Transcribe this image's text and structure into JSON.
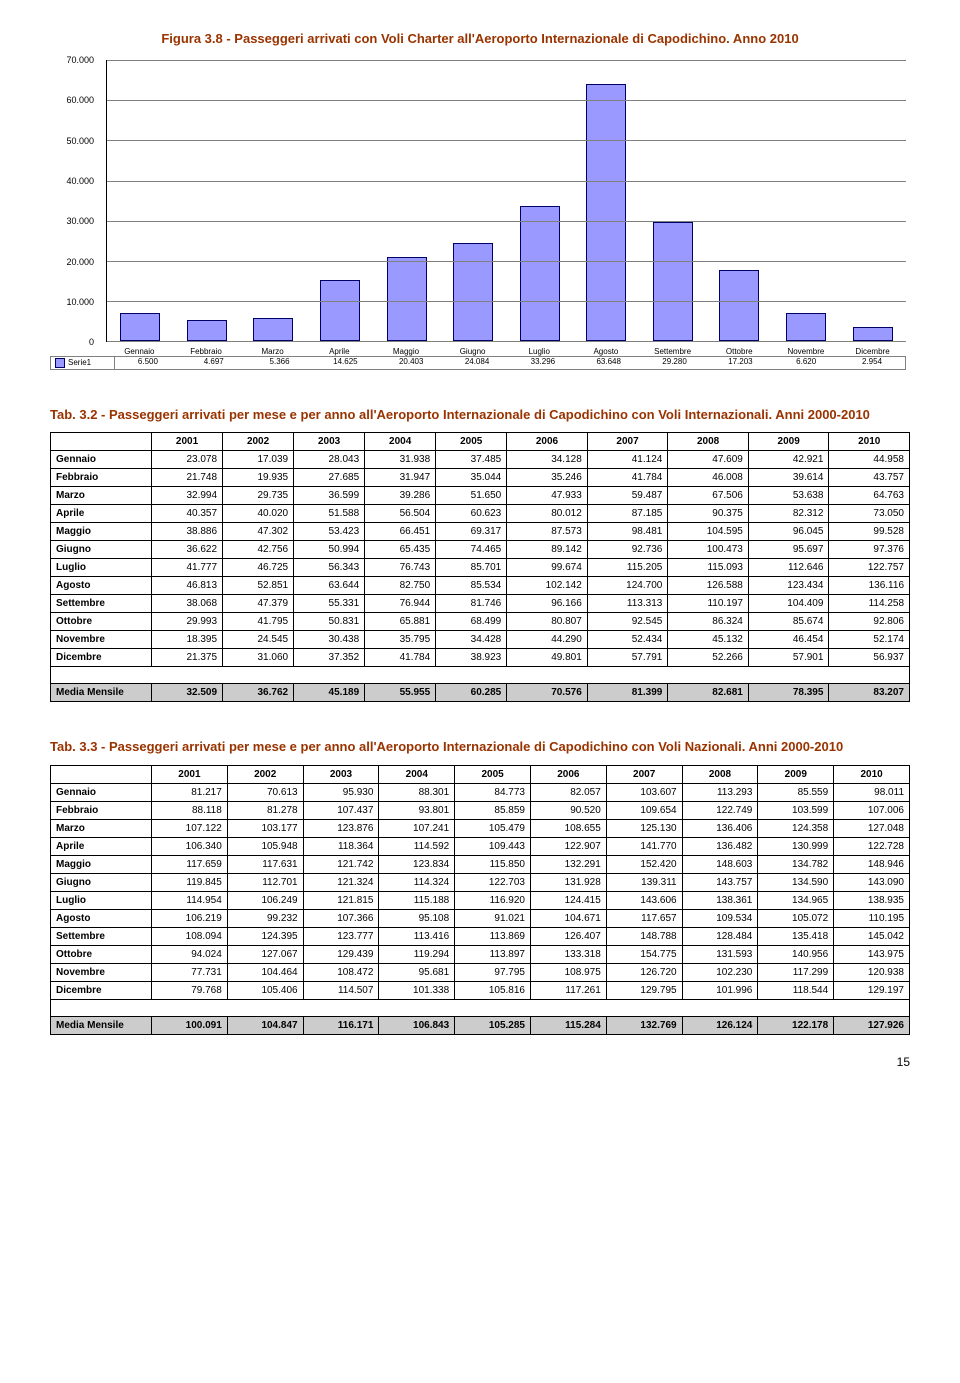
{
  "chart": {
    "title": "Figura 3.8 - Passeggeri arrivati con Voli Charter all'Aeroporto Internazionale di Capodichino. Anno 2010",
    "categories": [
      "Gennaio",
      "Febbraio",
      "Marzo",
      "Aprile",
      "Maggio",
      "Giugno",
      "Luglio",
      "Agosto",
      "Settembre",
      "Ottobre",
      "Novembre",
      "Dicembre"
    ],
    "values": [
      6500,
      4697,
      5366,
      14625,
      20403,
      24084,
      33296,
      63648,
      29280,
      17203,
      6620,
      2954
    ],
    "labels": [
      "6.500",
      "4.697",
      "5.366",
      "14.625",
      "20.403",
      "24.084",
      "33.296",
      "63.648",
      "29.280",
      "17.203",
      "6.620",
      "2.954"
    ],
    "series_name": "Serie1",
    "y_max": 70000,
    "y_ticks": [
      "0",
      "10.000",
      "20.000",
      "30.000",
      "40.000",
      "50.000",
      "60.000",
      "70.000"
    ],
    "bar_color": "#9999ff",
    "bar_border": "#000066",
    "grid_color": "#808080"
  },
  "table1": {
    "title": "Tab. 3.2 - Passeggeri arrivati per mese e per anno all'Aeroporto Internazionale di Capodichino con Voli Internazionali. Anni 2000-2010",
    "years": [
      "2001",
      "2002",
      "2003",
      "2004",
      "2005",
      "2006",
      "2007",
      "2008",
      "2009",
      "2010"
    ],
    "rows": [
      {
        "m": "Gennaio",
        "v": [
          "23.078",
          "17.039",
          "28.043",
          "31.938",
          "37.485",
          "34.128",
          "41.124",
          "47.609",
          "42.921",
          "44.958"
        ]
      },
      {
        "m": "Febbraio",
        "v": [
          "21.748",
          "19.935",
          "27.685",
          "31.947",
          "35.044",
          "35.246",
          "41.784",
          "46.008",
          "39.614",
          "43.757"
        ]
      },
      {
        "m": "Marzo",
        "v": [
          "32.994",
          "29.735",
          "36.599",
          "39.286",
          "51.650",
          "47.933",
          "59.487",
          "67.506",
          "53.638",
          "64.763"
        ]
      },
      {
        "m": "Aprile",
        "v": [
          "40.357",
          "40.020",
          "51.588",
          "56.504",
          "60.623",
          "80.012",
          "87.185",
          "90.375",
          "82.312",
          "73.050"
        ]
      },
      {
        "m": "Maggio",
        "v": [
          "38.886",
          "47.302",
          "53.423",
          "66.451",
          "69.317",
          "87.573",
          "98.481",
          "104.595",
          "96.045",
          "99.528"
        ]
      },
      {
        "m": "Giugno",
        "v": [
          "36.622",
          "42.756",
          "50.994",
          "65.435",
          "74.465",
          "89.142",
          "92.736",
          "100.473",
          "95.697",
          "97.376"
        ]
      },
      {
        "m": "Luglio",
        "v": [
          "41.777",
          "46.725",
          "56.343",
          "76.743",
          "85.701",
          "99.674",
          "115.205",
          "115.093",
          "112.646",
          "122.757"
        ]
      },
      {
        "m": "Agosto",
        "v": [
          "46.813",
          "52.851",
          "63.644",
          "82.750",
          "85.534",
          "102.142",
          "124.700",
          "126.588",
          "123.434",
          "136.116"
        ]
      },
      {
        "m": "Settembre",
        "v": [
          "38.068",
          "47.379",
          "55.331",
          "76.944",
          "81.746",
          "96.166",
          "113.313",
          "110.197",
          "104.409",
          "114.258"
        ]
      },
      {
        "m": "Ottobre",
        "v": [
          "29.993",
          "41.795",
          "50.831",
          "65.881",
          "68.499",
          "80.807",
          "92.545",
          "86.324",
          "85.674",
          "92.806"
        ]
      },
      {
        "m": "Novembre",
        "v": [
          "18.395",
          "24.545",
          "30.438",
          "35.795",
          "34.428",
          "44.290",
          "52.434",
          "45.132",
          "46.454",
          "52.174"
        ]
      },
      {
        "m": "Dicembre",
        "v": [
          "21.375",
          "31.060",
          "37.352",
          "41.784",
          "38.923",
          "49.801",
          "57.791",
          "52.266",
          "57.901",
          "56.937"
        ]
      }
    ],
    "media_label": "Media Mensile",
    "media": [
      "32.509",
      "36.762",
      "45.189",
      "55.955",
      "60.285",
      "70.576",
      "81.399",
      "82.681",
      "78.395",
      "83.207"
    ]
  },
  "table2": {
    "title": "Tab. 3.3 - Passeggeri arrivati per mese e per anno all'Aeroporto Internazionale di Capodichino con Voli Nazionali. Anni 2000-2010",
    "years": [
      "2001",
      "2002",
      "2003",
      "2004",
      "2005",
      "2006",
      "2007",
      "2008",
      "2009",
      "2010"
    ],
    "rows": [
      {
        "m": "Gennaio",
        "v": [
          "81.217",
          "70.613",
          "95.930",
          "88.301",
          "84.773",
          "82.057",
          "103.607",
          "113.293",
          "85.559",
          "98.011"
        ]
      },
      {
        "m": "Febbraio",
        "v": [
          "88.118",
          "81.278",
          "107.437",
          "93.801",
          "85.859",
          "90.520",
          "109.654",
          "122.749",
          "103.599",
          "107.006"
        ]
      },
      {
        "m": "Marzo",
        "v": [
          "107.122",
          "103.177",
          "123.876",
          "107.241",
          "105.479",
          "108.655",
          "125.130",
          "136.406",
          "124.358",
          "127.048"
        ]
      },
      {
        "m": "Aprile",
        "v": [
          "106.340",
          "105.948",
          "118.364",
          "114.592",
          "109.443",
          "122.907",
          "141.770",
          "136.482",
          "130.999",
          "122.728"
        ]
      },
      {
        "m": "Maggio",
        "v": [
          "117.659",
          "117.631",
          "121.742",
          "123.834",
          "115.850",
          "132.291",
          "152.420",
          "148.603",
          "134.782",
          "148.946"
        ]
      },
      {
        "m": "Giugno",
        "v": [
          "119.845",
          "112.701",
          "121.324",
          "114.324",
          "122.703",
          "131.928",
          "139.311",
          "143.757",
          "134.590",
          "143.090"
        ]
      },
      {
        "m": "Luglio",
        "v": [
          "114.954",
          "106.249",
          "121.815",
          "115.188",
          "116.920",
          "124.415",
          "143.606",
          "138.361",
          "134.965",
          "138.935"
        ]
      },
      {
        "m": "Agosto",
        "v": [
          "106.219",
          "99.232",
          "107.366",
          "95.108",
          "91.021",
          "104.671",
          "117.657",
          "109.534",
          "105.072",
          "110.195"
        ]
      },
      {
        "m": "Settembre",
        "v": [
          "108.094",
          "124.395",
          "123.777",
          "113.416",
          "113.869",
          "126.407",
          "148.788",
          "128.484",
          "135.418",
          "145.042"
        ]
      },
      {
        "m": "Ottobre",
        "v": [
          "94.024",
          "127.067",
          "129.439",
          "119.294",
          "113.897",
          "133.318",
          "154.775",
          "131.593",
          "140.956",
          "143.975"
        ]
      },
      {
        "m": "Novembre",
        "v": [
          "77.731",
          "104.464",
          "108.472",
          "95.681",
          "97.795",
          "108.975",
          "126.720",
          "102.230",
          "117.299",
          "120.938"
        ]
      },
      {
        "m": "Dicembre",
        "v": [
          "79.768",
          "105.406",
          "114.507",
          "101.338",
          "105.816",
          "117.261",
          "129.795",
          "101.996",
          "118.544",
          "129.197"
        ]
      }
    ],
    "media_label": "Media Mensile",
    "media": [
      "100.091",
      "104.847",
      "116.171",
      "106.843",
      "105.285",
      "115.284",
      "132.769",
      "126.124",
      "122.178",
      "127.926"
    ]
  },
  "page_number": "15"
}
